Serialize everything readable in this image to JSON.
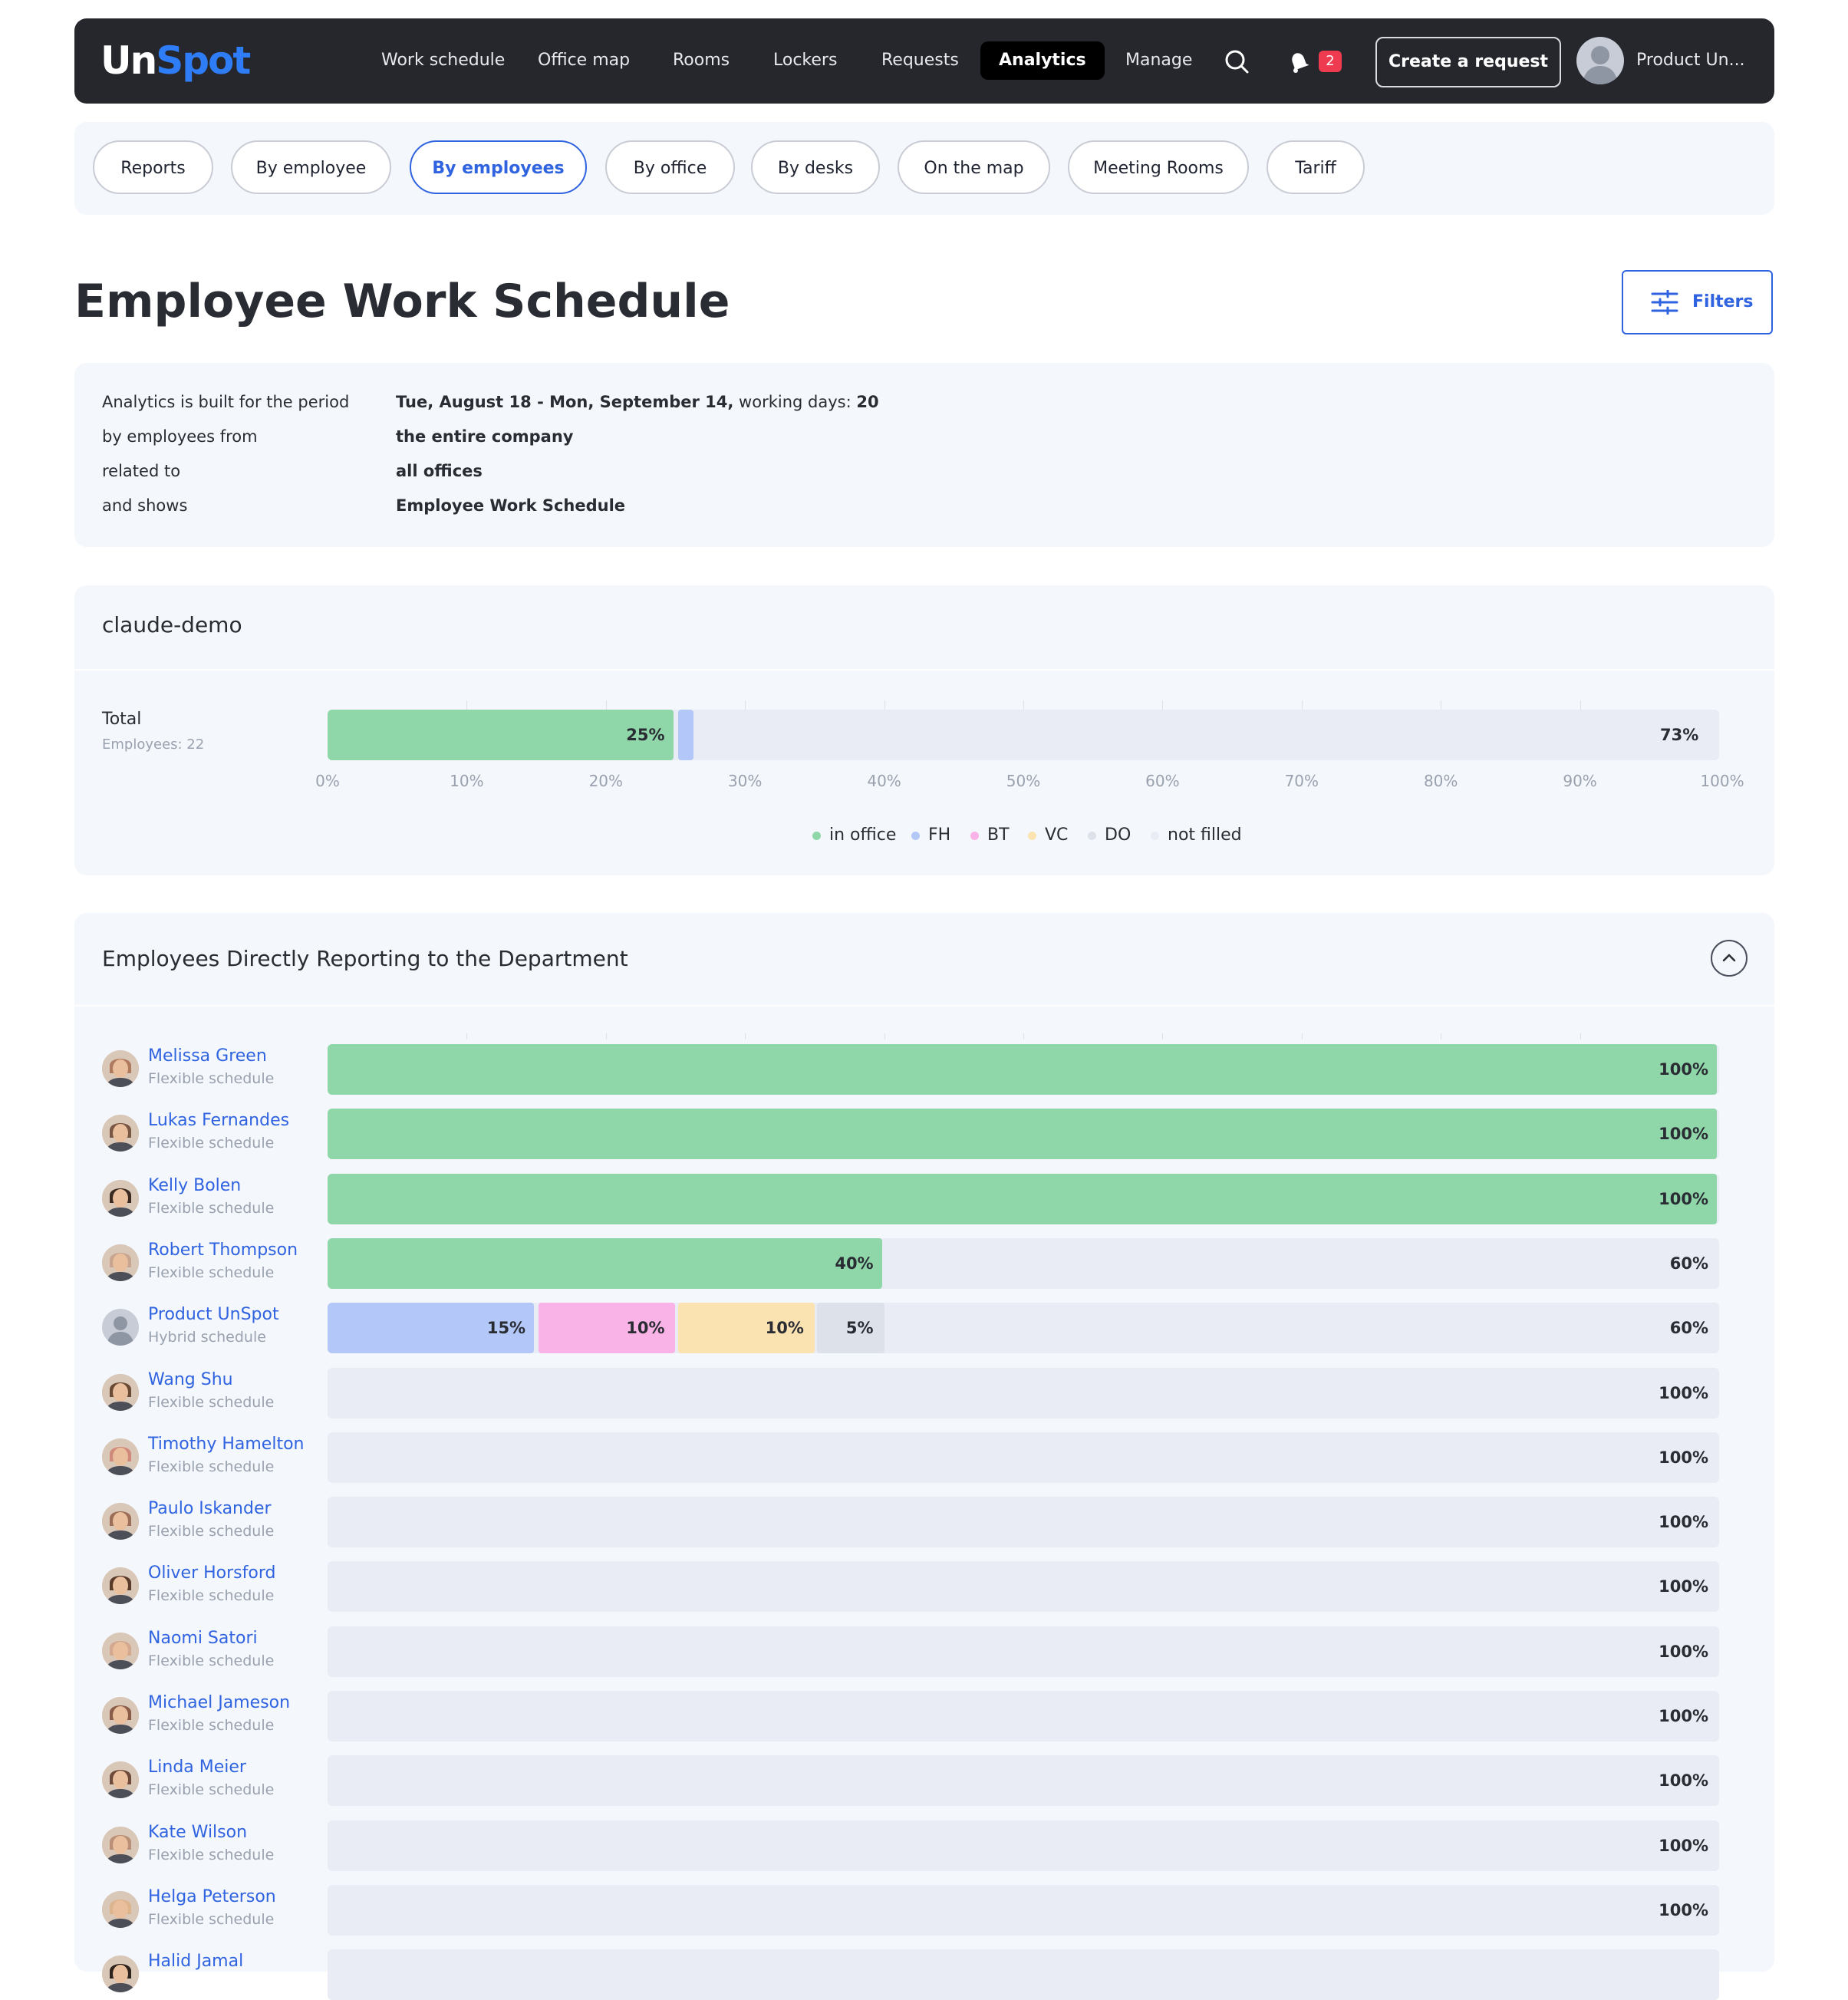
{
  "nav": {
    "logo_part1": "Un",
    "logo_part2": "Spot",
    "items": [
      "Work schedule",
      "Office map",
      "Rooms",
      "Lockers",
      "Requests",
      "Analytics",
      "Manage"
    ],
    "active_item": "Analytics",
    "notification_count": "2",
    "create_request_label": "Create a request",
    "user_name": "Product Un..."
  },
  "tabs": [
    "Reports",
    "By employee",
    "By employees",
    "By office",
    "By desks",
    "On the map",
    "Meeting Rooms",
    "Tariff"
  ],
  "active_tab": "By employees",
  "page_title": "Employee Work Schedule",
  "filters_label": "Filters",
  "info": {
    "period_label": "Analytics is built for the period",
    "period_value": "Tue, August 18 - Mon, September 14,",
    "working_days_label": " working days: ",
    "working_days_value": "20",
    "employees_label": "by employees from",
    "employees_value": "the entire company",
    "related_label": "related to",
    "related_value": "all offices",
    "shows_label": "and shows",
    "shows_value": "Employee Work Schedule"
  },
  "summary": {
    "title": "claude-demo",
    "total_label": "Total",
    "employees_count": "Employees: 22"
  },
  "axis_ticks": [
    "0%",
    "10%",
    "20%",
    "30%",
    "40%",
    "50%",
    "60%",
    "70%",
    "80%",
    "90%",
    "100%"
  ],
  "legend": [
    {
      "label": "in office",
      "color": "#8fd6a9"
    },
    {
      "label": "FH",
      "color": "#b3c8f8"
    },
    {
      "label": "BT",
      "color": "#f9b3e6"
    },
    {
      "label": "VC",
      "color": "#fbe3b1"
    },
    {
      "label": "DO",
      "color": "#dde1ea"
    },
    {
      "label": "not filled",
      "color": "#e9ecf4"
    }
  ],
  "department": {
    "title": "Employees Directly Reporting to the Department"
  },
  "chart_data": {
    "type": "bar",
    "orientation": "horizontal-stacked",
    "x_unit": "percent of working days",
    "xlim": [
      0,
      100
    ],
    "series_keys": [
      "in office",
      "FH",
      "BT",
      "VC",
      "DO",
      "not filled"
    ],
    "total": {
      "label": "Total",
      "values": [
        25,
        1.3,
        0,
        0,
        0,
        73
      ],
      "labels": [
        "25%",
        "",
        "",
        "",
        "",
        "73%"
      ]
    },
    "employees": [
      {
        "name": "Melissa Green",
        "schedule": "Flexible schedule",
        "values": [
          100,
          0,
          0,
          0,
          0,
          0
        ],
        "labels": [
          "100%",
          "",
          "",
          "",
          "",
          ""
        ]
      },
      {
        "name": "Lukas Fernandes",
        "schedule": "Flexible schedule",
        "values": [
          100,
          0,
          0,
          0,
          0,
          0
        ],
        "labels": [
          "100%",
          "",
          "",
          "",
          "",
          ""
        ]
      },
      {
        "name": "Kelly Bolen",
        "schedule": "Flexible schedule",
        "values": [
          100,
          0,
          0,
          0,
          0,
          0
        ],
        "labels": [
          "100%",
          "",
          "",
          "",
          "",
          ""
        ]
      },
      {
        "name": "Robert Thompson",
        "schedule": "Flexible schedule",
        "values": [
          40,
          0,
          0,
          0,
          0,
          60
        ],
        "labels": [
          "40%",
          "",
          "",
          "",
          "",
          "60%"
        ]
      },
      {
        "name": "Product UnSpot",
        "schedule": "Hybrid schedule",
        "values": [
          0,
          15,
          10,
          10,
          5,
          60
        ],
        "labels": [
          "",
          "15%",
          "10%",
          "10%",
          "5%",
          "60%"
        ]
      },
      {
        "name": "Wang Shu",
        "schedule": "Flexible schedule",
        "values": [
          0,
          0,
          0,
          0,
          0,
          100
        ],
        "labels": [
          "",
          "",
          "",
          "",
          "",
          "100%"
        ]
      },
      {
        "name": "Timothy Hamelton",
        "schedule": "Flexible schedule",
        "values": [
          0,
          0,
          0,
          0,
          0,
          100
        ],
        "labels": [
          "",
          "",
          "",
          "",
          "",
          "100%"
        ]
      },
      {
        "name": "Paulo Iskander",
        "schedule": "Flexible schedule",
        "values": [
          0,
          0,
          0,
          0,
          0,
          100
        ],
        "labels": [
          "",
          "",
          "",
          "",
          "",
          "100%"
        ]
      },
      {
        "name": "Oliver Horsford",
        "schedule": "Flexible schedule",
        "values": [
          0,
          0,
          0,
          0,
          0,
          100
        ],
        "labels": [
          "",
          "",
          "",
          "",
          "",
          "100%"
        ]
      },
      {
        "name": "Naomi Satori",
        "schedule": "Flexible schedule",
        "values": [
          0,
          0,
          0,
          0,
          0,
          100
        ],
        "labels": [
          "",
          "",
          "",
          "",
          "",
          "100%"
        ]
      },
      {
        "name": "Michael Jameson",
        "schedule": "Flexible schedule",
        "values": [
          0,
          0,
          0,
          0,
          0,
          100
        ],
        "labels": [
          "",
          "",
          "",
          "",
          "",
          "100%"
        ]
      },
      {
        "name": "Linda Meier",
        "schedule": "Flexible schedule",
        "values": [
          0,
          0,
          0,
          0,
          0,
          100
        ],
        "labels": [
          "",
          "",
          "",
          "",
          "",
          "100%"
        ]
      },
      {
        "name": "Kate Wilson",
        "schedule": "Flexible schedule",
        "values": [
          0,
          0,
          0,
          0,
          0,
          100
        ],
        "labels": [
          "",
          "",
          "",
          "",
          "",
          "100%"
        ]
      },
      {
        "name": "Helga Peterson",
        "schedule": "Flexible schedule",
        "values": [
          0,
          0,
          0,
          0,
          0,
          100
        ],
        "labels": [
          "",
          "",
          "",
          "",
          "",
          "100%"
        ]
      },
      {
        "name": "Halid Jamal",
        "schedule": "",
        "values": [
          0,
          0,
          0,
          0,
          0,
          100
        ],
        "labels": [
          "",
          "",
          "",
          "",
          "",
          ""
        ]
      }
    ]
  }
}
